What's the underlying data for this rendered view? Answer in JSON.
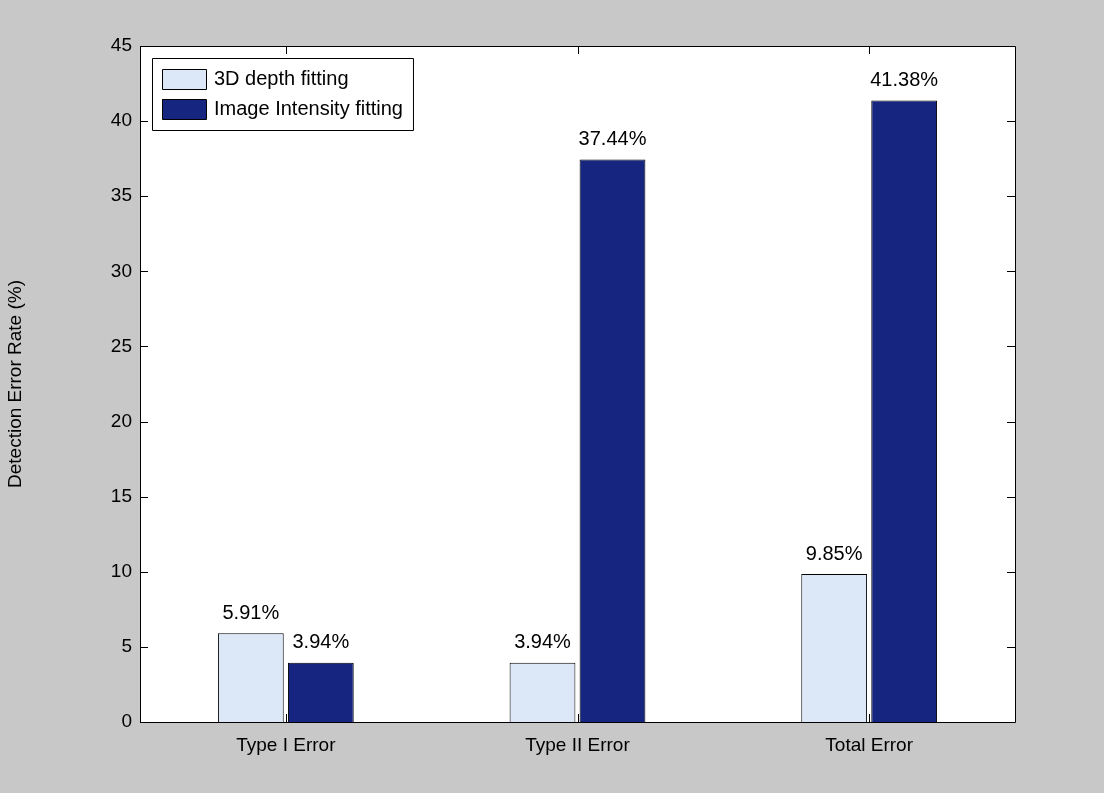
{
  "chart_data": {
    "type": "bar",
    "ylabel": "Detection Error Rate (%)",
    "categories": [
      "Type I Error",
      "Type II Error",
      "Total Error"
    ],
    "series": [
      {
        "name": "3D depth fitting",
        "color": "#dce8f8",
        "values": [
          5.91,
          3.94,
          9.85
        ],
        "value_labels": [
          "5.91%",
          "3.94%",
          "9.85%"
        ]
      },
      {
        "name": "Image Intensity fitting",
        "color": "#162680",
        "values": [
          3.94,
          37.44,
          41.38
        ],
        "value_labels": [
          "3.94%",
          "37.44%",
          "41.38%"
        ]
      }
    ],
    "ylim": [
      0,
      45
    ],
    "yticks": [
      0,
      5,
      10,
      15,
      20,
      25,
      30,
      35,
      40,
      45
    ],
    "grid": false,
    "legend": "top left"
  }
}
